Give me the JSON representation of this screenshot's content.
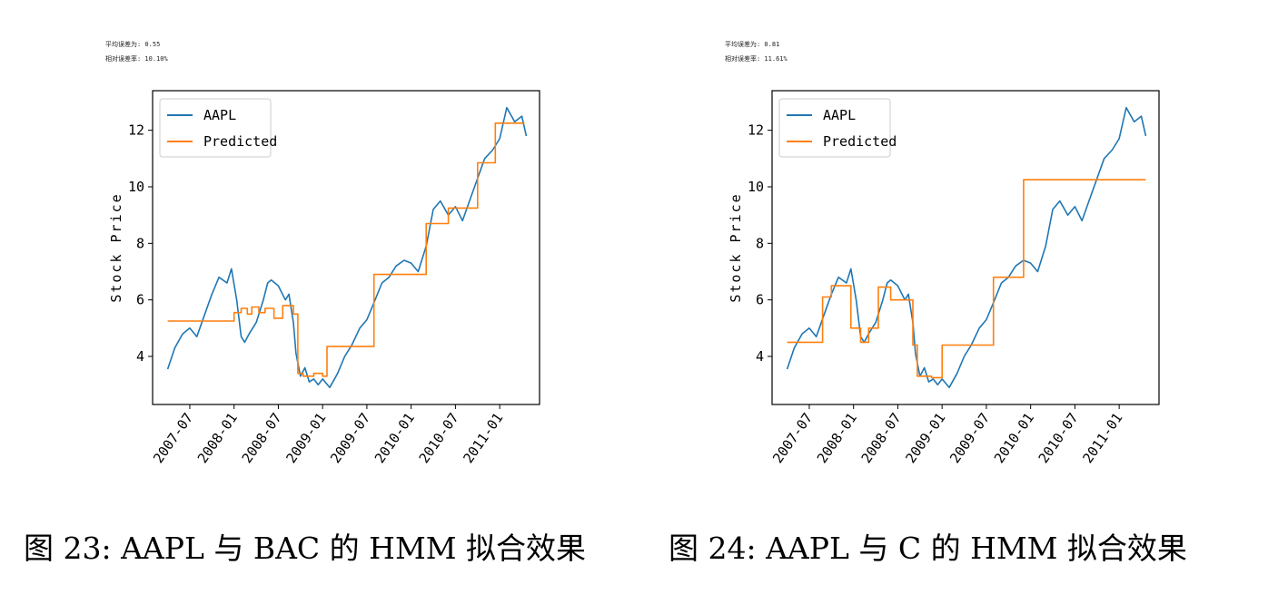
{
  "figures": [
    {
      "stats": {
        "mean_error": "平均误差为: 0.55",
        "relative_error": "相对误差率: 10.10%"
      },
      "caption": "图 23: AAPL 与 BAC 的 HMM 拟合效果"
    },
    {
      "stats": {
        "mean_error": "平均误差为: 0.81",
        "relative_error": "相对误差率: 11.61%"
      },
      "caption": "图 24: AAPL 与 C 的 HMM 拟合效果"
    }
  ],
  "chart_data": [
    {
      "type": "line",
      "title": "",
      "xlabel": "",
      "ylabel": "Stock Price",
      "ylim": [
        2.3,
        13.4
      ],
      "xlim": [
        2007.08,
        2011.45
      ],
      "x_ticks": [
        "2007-07",
        "2008-01",
        "2008-07",
        "2009-01",
        "2009-07",
        "2010-01",
        "2010-07",
        "2011-01"
      ],
      "x_tick_values": [
        2007.5,
        2008.0,
        2008.5,
        2009.0,
        2009.5,
        2010.0,
        2010.5,
        2011.0
      ],
      "y_ticks": [
        4,
        6,
        8,
        10,
        12
      ],
      "legend": [
        "AAPL",
        "Predicted"
      ],
      "legend_position": "top-left",
      "series": [
        {
          "name": "AAPL",
          "color": "#1f77b4",
          "points": [
            [
              2007.25,
              3.55
            ],
            [
              2007.33,
              4.3
            ],
            [
              2007.42,
              4.8
            ],
            [
              2007.5,
              5.0
            ],
            [
              2007.58,
              4.7
            ],
            [
              2007.67,
              5.5
            ],
            [
              2007.75,
              6.2
            ],
            [
              2007.83,
              6.8
            ],
            [
              2007.92,
              6.6
            ],
            [
              2007.97,
              7.1
            ],
            [
              2008.03,
              6.0
            ],
            [
              2008.08,
              4.7
            ],
            [
              2008.12,
              4.5
            ],
            [
              2008.17,
              4.8
            ],
            [
              2008.25,
              5.2
            ],
            [
              2008.33,
              6.0
            ],
            [
              2008.38,
              6.6
            ],
            [
              2008.42,
              6.7
            ],
            [
              2008.5,
              6.5
            ],
            [
              2008.58,
              6.0
            ],
            [
              2008.62,
              6.2
            ],
            [
              2008.67,
              5.2
            ],
            [
              2008.7,
              4.1
            ],
            [
              2008.75,
              3.3
            ],
            [
              2008.8,
              3.6
            ],
            [
              2008.85,
              3.1
            ],
            [
              2008.9,
              3.2
            ],
            [
              2008.95,
              3.0
            ],
            [
              2009.0,
              3.2
            ],
            [
              2009.08,
              2.9
            ],
            [
              2009.17,
              3.4
            ],
            [
              2009.25,
              4.0
            ],
            [
              2009.33,
              4.4
            ],
            [
              2009.42,
              5.0
            ],
            [
              2009.5,
              5.3
            ],
            [
              2009.58,
              5.9
            ],
            [
              2009.67,
              6.6
            ],
            [
              2009.75,
              6.8
            ],
            [
              2009.83,
              7.2
            ],
            [
              2009.92,
              7.4
            ],
            [
              2010.0,
              7.3
            ],
            [
              2010.08,
              7.0
            ],
            [
              2010.17,
              7.9
            ],
            [
              2010.25,
              9.2
            ],
            [
              2010.33,
              9.5
            ],
            [
              2010.42,
              9.0
            ],
            [
              2010.5,
              9.3
            ],
            [
              2010.58,
              8.8
            ],
            [
              2010.67,
              9.6
            ],
            [
              2010.75,
              10.3
            ],
            [
              2010.83,
              11.0
            ],
            [
              2010.92,
              11.3
            ],
            [
              2011.0,
              11.7
            ],
            [
              2011.08,
              12.8
            ],
            [
              2011.17,
              12.3
            ],
            [
              2011.25,
              12.5
            ],
            [
              2011.3,
              11.8
            ]
          ]
        },
        {
          "name": "Predicted",
          "color": "#ff7f0e",
          "points": [
            [
              2007.25,
              5.25
            ],
            [
              2008.0,
              5.25
            ],
            [
              2008.0,
              5.55
            ],
            [
              2008.08,
              5.55
            ],
            [
              2008.08,
              5.7
            ],
            [
              2008.15,
              5.7
            ],
            [
              2008.15,
              5.5
            ],
            [
              2008.2,
              5.5
            ],
            [
              2008.2,
              5.75
            ],
            [
              2008.28,
              5.75
            ],
            [
              2008.28,
              5.55
            ],
            [
              2008.35,
              5.55
            ],
            [
              2008.35,
              5.7
            ],
            [
              2008.45,
              5.7
            ],
            [
              2008.45,
              5.35
            ],
            [
              2008.55,
              5.35
            ],
            [
              2008.55,
              5.8
            ],
            [
              2008.67,
              5.8
            ],
            [
              2008.67,
              5.5
            ],
            [
              2008.72,
              5.5
            ],
            [
              2008.72,
              3.4
            ],
            [
              2008.78,
              3.4
            ],
            [
              2008.78,
              3.3
            ],
            [
              2008.9,
              3.3
            ],
            [
              2008.9,
              3.4
            ],
            [
              2009.0,
              3.4
            ],
            [
              2009.0,
              3.3
            ],
            [
              2009.05,
              3.3
            ],
            [
              2009.05,
              4.35
            ],
            [
              2009.58,
              4.35
            ],
            [
              2009.58,
              6.9
            ],
            [
              2010.17,
              6.9
            ],
            [
              2010.17,
              8.7
            ],
            [
              2010.42,
              8.7
            ],
            [
              2010.42,
              9.25
            ],
            [
              2010.75,
              9.25
            ],
            [
              2010.75,
              10.85
            ],
            [
              2010.95,
              10.85
            ],
            [
              2010.95,
              12.25
            ],
            [
              2011.28,
              12.25
            ]
          ]
        }
      ]
    },
    {
      "type": "line",
      "title": "",
      "xlabel": "",
      "ylabel": "Stock Price",
      "ylim": [
        2.3,
        13.4
      ],
      "xlim": [
        2007.08,
        2011.45
      ],
      "x_ticks": [
        "2007-07",
        "2008-01",
        "2008-07",
        "2009-01",
        "2009-07",
        "2010-01",
        "2010-07",
        "2011-01"
      ],
      "x_tick_values": [
        2007.5,
        2008.0,
        2008.5,
        2009.0,
        2009.5,
        2010.0,
        2010.5,
        2011.0
      ],
      "y_ticks": [
        4,
        6,
        8,
        10,
        12
      ],
      "legend": [
        "AAPL",
        "Predicted"
      ],
      "legend_position": "top-left",
      "series": [
        {
          "name": "AAPL",
          "color": "#1f77b4",
          "points": [
            [
              2007.25,
              3.55
            ],
            [
              2007.33,
              4.3
            ],
            [
              2007.42,
              4.8
            ],
            [
              2007.5,
              5.0
            ],
            [
              2007.58,
              4.7
            ],
            [
              2007.67,
              5.5
            ],
            [
              2007.75,
              6.2
            ],
            [
              2007.83,
              6.8
            ],
            [
              2007.92,
              6.6
            ],
            [
              2007.97,
              7.1
            ],
            [
              2008.03,
              6.0
            ],
            [
              2008.08,
              4.7
            ],
            [
              2008.12,
              4.5
            ],
            [
              2008.17,
              4.8
            ],
            [
              2008.25,
              5.2
            ],
            [
              2008.33,
              6.0
            ],
            [
              2008.38,
              6.6
            ],
            [
              2008.42,
              6.7
            ],
            [
              2008.5,
              6.5
            ],
            [
              2008.58,
              6.0
            ],
            [
              2008.62,
              6.2
            ],
            [
              2008.67,
              5.2
            ],
            [
              2008.7,
              4.1
            ],
            [
              2008.75,
              3.3
            ],
            [
              2008.8,
              3.6
            ],
            [
              2008.85,
              3.1
            ],
            [
              2008.9,
              3.2
            ],
            [
              2008.95,
              3.0
            ],
            [
              2009.0,
              3.2
            ],
            [
              2009.08,
              2.9
            ],
            [
              2009.17,
              3.4
            ],
            [
              2009.25,
              4.0
            ],
            [
              2009.33,
              4.4
            ],
            [
              2009.42,
              5.0
            ],
            [
              2009.5,
              5.3
            ],
            [
              2009.58,
              5.9
            ],
            [
              2009.67,
              6.6
            ],
            [
              2009.75,
              6.8
            ],
            [
              2009.83,
              7.2
            ],
            [
              2009.92,
              7.4
            ],
            [
              2010.0,
              7.3
            ],
            [
              2010.08,
              7.0
            ],
            [
              2010.17,
              7.9
            ],
            [
              2010.25,
              9.2
            ],
            [
              2010.33,
              9.5
            ],
            [
              2010.42,
              9.0
            ],
            [
              2010.5,
              9.3
            ],
            [
              2010.58,
              8.8
            ],
            [
              2010.67,
              9.6
            ],
            [
              2010.75,
              10.3
            ],
            [
              2010.83,
              11.0
            ],
            [
              2010.92,
              11.3
            ],
            [
              2011.0,
              11.7
            ],
            [
              2011.08,
              12.8
            ],
            [
              2011.17,
              12.3
            ],
            [
              2011.25,
              12.5
            ],
            [
              2011.3,
              11.8
            ]
          ]
        },
        {
          "name": "Predicted",
          "color": "#ff7f0e",
          "points": [
            [
              2007.25,
              4.5
            ],
            [
              2007.65,
              4.5
            ],
            [
              2007.65,
              6.1
            ],
            [
              2007.75,
              6.1
            ],
            [
              2007.75,
              6.5
            ],
            [
              2007.97,
              6.5
            ],
            [
              2007.97,
              5.0
            ],
            [
              2008.08,
              5.0
            ],
            [
              2008.08,
              4.5
            ],
            [
              2008.17,
              4.5
            ],
            [
              2008.17,
              5.0
            ],
            [
              2008.28,
              5.0
            ],
            [
              2008.28,
              6.45
            ],
            [
              2008.42,
              6.45
            ],
            [
              2008.42,
              6.0
            ],
            [
              2008.67,
              6.0
            ],
            [
              2008.67,
              4.4
            ],
            [
              2008.72,
              4.4
            ],
            [
              2008.72,
              3.3
            ],
            [
              2008.88,
              3.3
            ],
            [
              2008.88,
              3.25
            ],
            [
              2009.0,
              3.25
            ],
            [
              2009.0,
              4.4
            ],
            [
              2009.58,
              4.4
            ],
            [
              2009.58,
              6.8
            ],
            [
              2009.92,
              6.8
            ],
            [
              2009.92,
              10.25
            ],
            [
              2011.3,
              10.25
            ]
          ]
        }
      ]
    }
  ]
}
